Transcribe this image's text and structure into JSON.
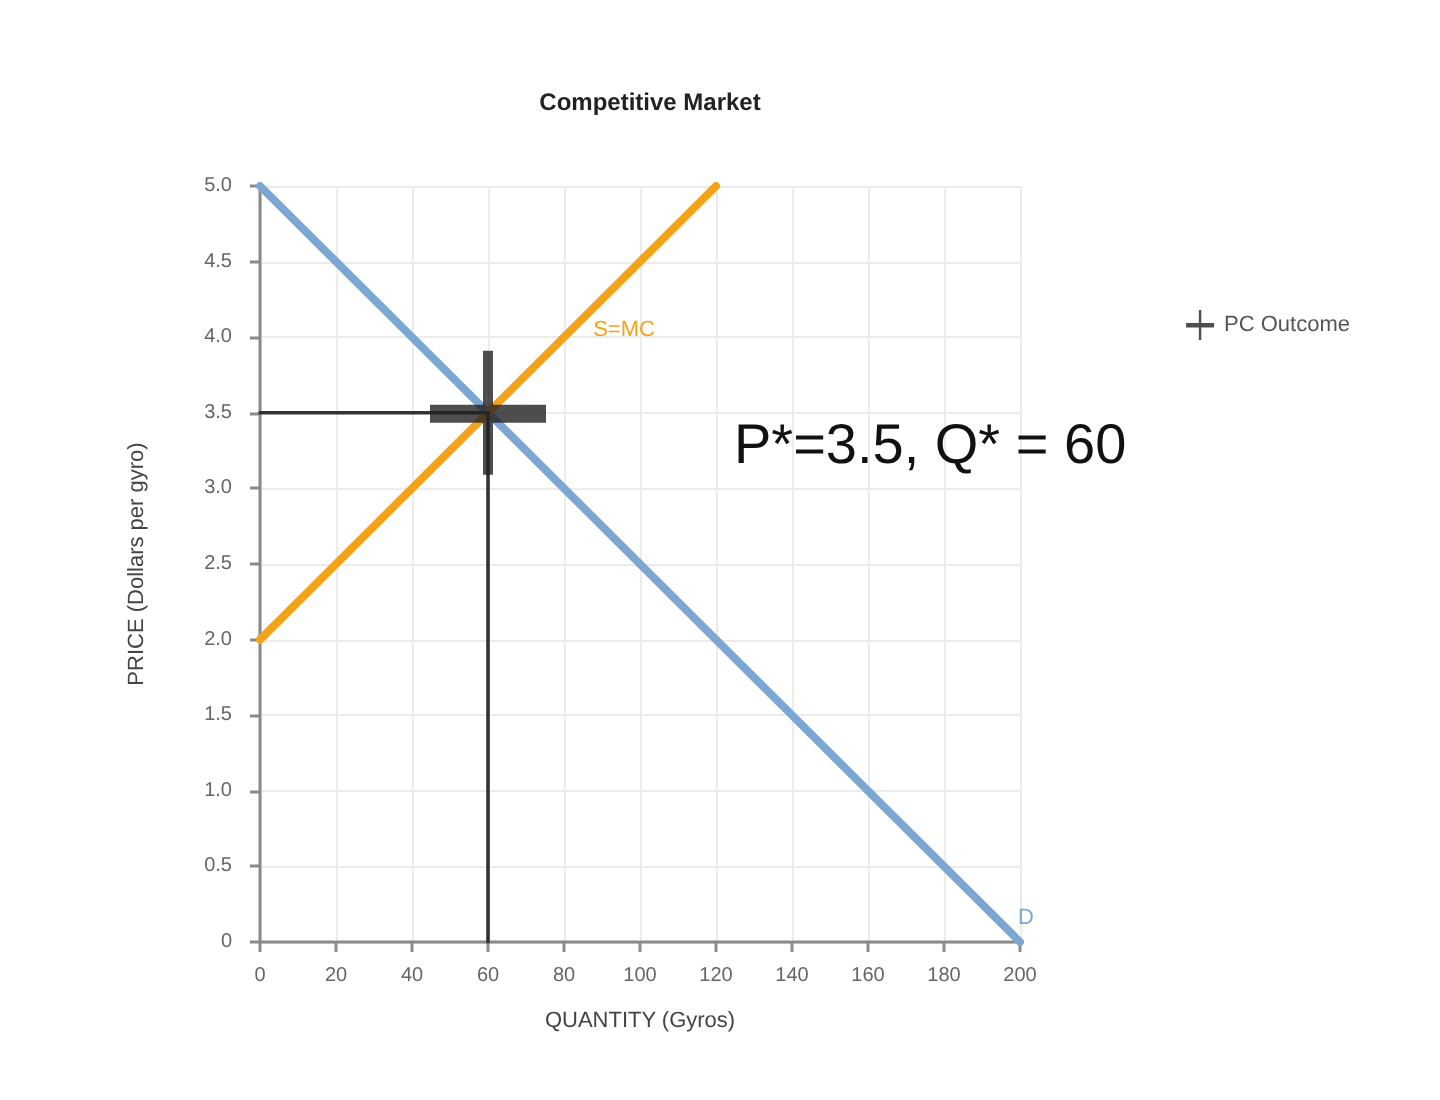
{
  "chart_data": {
    "type": "line",
    "title": "Competitive Market",
    "xlabel": "QUANTITY (Gyros)",
    "ylabel": "PRICE (Dollars per gyro)",
    "series": [
      {
        "name": "D",
        "color": "#7ba7d2",
        "x": [
          0,
          200
        ],
        "values": [
          5,
          0
        ]
      },
      {
        "name": "S=MC",
        "color": "#f5a21b",
        "x": [
          0,
          120
        ],
        "values": [
          2,
          5
        ]
      },
      {
        "color": "#333333",
        "x": [
          0,
          60
        ],
        "values": [
          3.5,
          3.5
        ]
      },
      {
        "color": "#333333",
        "x": [
          60,
          60
        ],
        "values": [
          0,
          3.5
        ]
      },
      {
        "type": "scatter",
        "name": "PC Outcome",
        "color": "#222222",
        "marker": "cross",
        "x": [
          60
        ],
        "values": [
          3.5
        ]
      }
    ],
    "annotations": [
      "P*=3.5, Q* = 60"
    ],
    "xlim": [
      0,
      200
    ],
    "ylim": [
      0,
      5
    ],
    "xticks": [
      0,
      20,
      40,
      60,
      80,
      100,
      120,
      140,
      160,
      180,
      200
    ],
    "yticks": [
      0,
      0.5,
      {
        "value": 1,
        "label": "1.0"
      },
      1.5,
      {
        "value": 2,
        "label": "2.0"
      },
      2.5,
      {
        "value": 3,
        "label": "3.0"
      },
      3.5,
      {
        "value": 4,
        "label": "4.0"
      },
      4.5,
      {
        "value": 5,
        "label": "5.0"
      }
    ],
    "grid": true,
    "legend": "top right"
  }
}
